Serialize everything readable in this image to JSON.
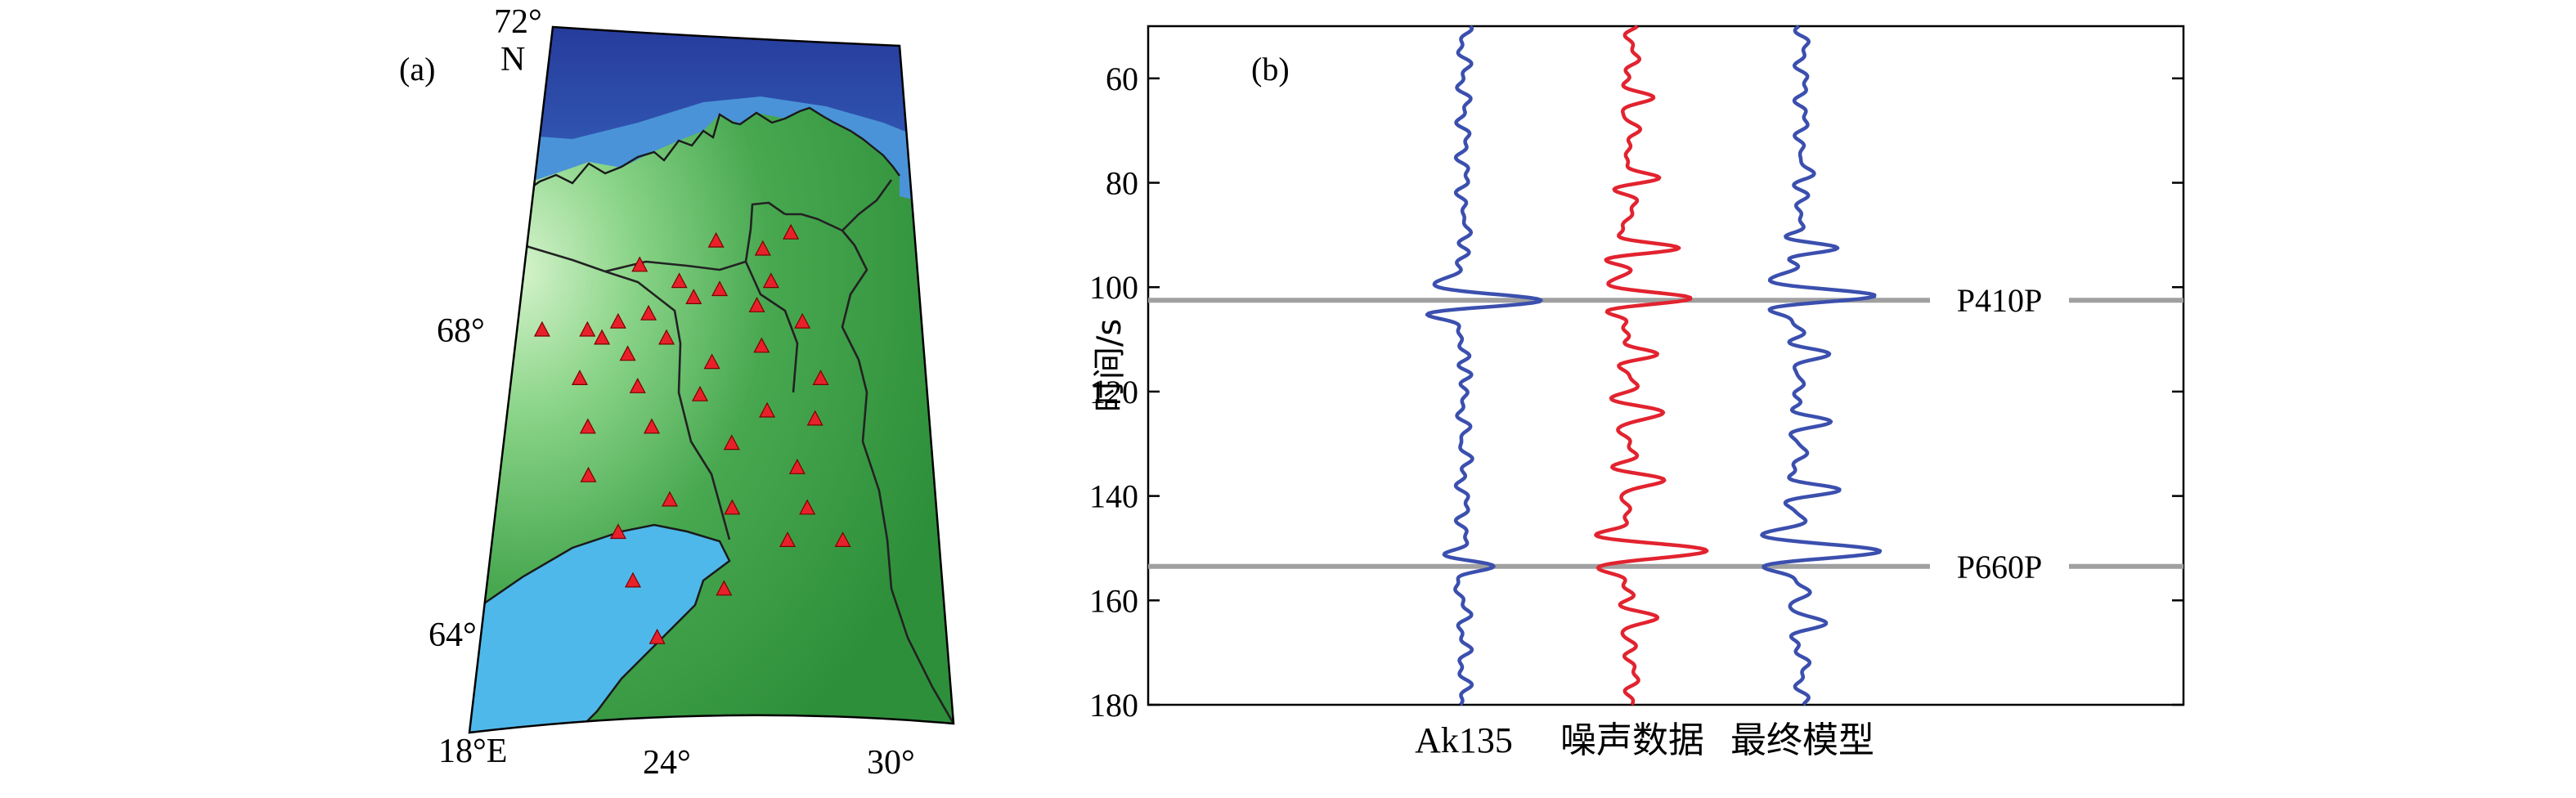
{
  "chart_data": [
    {
      "panel_label": "(a)",
      "type": "map",
      "latitude_labels": [
        "72°",
        "68°",
        "64°"
      ],
      "north_label": "N",
      "longitude_labels": [
        "18°E",
        "24°",
        "30°"
      ],
      "stations": [
        {
          "lon": 20.8,
          "lat": 68.5
        },
        {
          "lon": 24.8,
          "lat": 68.8
        },
        {
          "lon": 26.9,
          "lat": 69.1
        },
        {
          "lon": 28.2,
          "lat": 69.0
        },
        {
          "lon": 29.0,
          "lat": 69.2
        },
        {
          "lon": 25.9,
          "lat": 68.6
        },
        {
          "lon": 27.0,
          "lat": 68.5
        },
        {
          "lon": 28.4,
          "lat": 68.6
        },
        {
          "lon": 22.3,
          "lat": 68.0
        },
        {
          "lon": 23.5,
          "lat": 68.0
        },
        {
          "lon": 24.3,
          "lat": 68.1
        },
        {
          "lon": 25.1,
          "lat": 68.2
        },
        {
          "lon": 26.3,
          "lat": 68.4
        },
        {
          "lon": 28.0,
          "lat": 68.3
        },
        {
          "lon": 29.2,
          "lat": 68.1
        },
        {
          "lon": 23.9,
          "lat": 67.9
        },
        {
          "lon": 24.6,
          "lat": 67.7
        },
        {
          "lon": 25.6,
          "lat": 67.9
        },
        {
          "lon": 26.8,
          "lat": 67.6
        },
        {
          "lon": 28.1,
          "lat": 67.8
        },
        {
          "lon": 29.6,
          "lat": 67.4
        },
        {
          "lon": 23.4,
          "lat": 67.4
        },
        {
          "lon": 24.9,
          "lat": 67.3
        },
        {
          "lon": 26.5,
          "lat": 67.2
        },
        {
          "lon": 28.2,
          "lat": 67.0
        },
        {
          "lon": 29.4,
          "lat": 66.9
        },
        {
          "lon": 23.7,
          "lat": 66.8
        },
        {
          "lon": 25.3,
          "lat": 66.8
        },
        {
          "lon": 27.3,
          "lat": 66.6
        },
        {
          "lon": 28.9,
          "lat": 66.3
        },
        {
          "lon": 23.8,
          "lat": 66.2
        },
        {
          "lon": 25.8,
          "lat": 65.9
        },
        {
          "lon": 27.3,
          "lat": 65.8
        },
        {
          "lon": 29.1,
          "lat": 65.8
        },
        {
          "lon": 24.6,
          "lat": 65.5
        },
        {
          "lon": 28.6,
          "lat": 65.4
        },
        {
          "lon": 29.9,
          "lat": 65.4
        },
        {
          "lon": 25.0,
          "lat": 64.9
        },
        {
          "lon": 27.1,
          "lat": 64.8
        },
        {
          "lon": 25.6,
          "lat": 64.2
        }
      ],
      "colors": {
        "sea_deep": "#2b3f9e",
        "sea_shallow": "#3a74c8",
        "lake": "#4fb8ea",
        "land_high": "#ccefc0",
        "land_low": "#2e8f3a",
        "station": "#e8202a"
      }
    },
    {
      "panel_label": "(b)",
      "type": "line",
      "ylabel": "时间/s",
      "ylim": [
        50,
        180
      ],
      "y_inverted": true,
      "yticks": [
        "60",
        "80",
        "100",
        "120",
        "140",
        "160",
        "180"
      ],
      "phases": [
        {
          "label": "P410P",
          "time": 102.5
        },
        {
          "label": "P660P",
          "time": 153.5
        }
      ],
      "series": [
        {
          "name": "Ak135",
          "color": "#3b4fae",
          "wavelets": [
            {
              "t": 102.5,
              "amp": 1.0,
              "width": 3.5
            },
            {
              "t": 153.5,
              "amp": 0.35,
              "width": 3.0
            },
            {
              "t": 89.0,
              "amp": 0.15,
              "width": 3.2
            },
            {
              "t": 117.0,
              "amp": 0.12,
              "width": 3.2
            },
            {
              "t": 132.0,
              "amp": 0.1,
              "width": 3.2
            }
          ]
        },
        {
          "name": "噪声数据",
          "color": "#e2232f",
          "wavelets": [
            {
              "t": 102.0,
              "amp": 0.75,
              "width": 3.3
            },
            {
              "t": 150.5,
              "amp": 1.0,
              "width": 3.8
            },
            {
              "t": 92.5,
              "amp": 0.55,
              "width": 3.0
            },
            {
              "t": 79.0,
              "amp": 0.35,
              "width": 3.0
            },
            {
              "t": 64.0,
              "amp": 0.22,
              "width": 3.0
            },
            {
              "t": 124.0,
              "amp": 0.4,
              "width": 3.2
            },
            {
              "t": 137.0,
              "amp": 0.45,
              "width": 3.2
            },
            {
              "t": 163.5,
              "amp": 0.38,
              "width": 3.2
            },
            {
              "t": 113.0,
              "amp": 0.25,
              "width": 3.0
            }
          ]
        },
        {
          "name": "最终模型",
          "color": "#3b4fae",
          "wavelets": [
            {
              "t": 101.5,
              "amp": 0.85,
              "width": 3.4
            },
            {
              "t": 150.5,
              "amp": 0.95,
              "width": 3.6
            },
            {
              "t": 92.5,
              "amp": 0.45,
              "width": 3.0
            },
            {
              "t": 78.0,
              "amp": 0.22,
              "width": 3.0
            },
            {
              "t": 113.0,
              "amp": 0.38,
              "width": 3.2
            },
            {
              "t": 126.0,
              "amp": 0.35,
              "width": 3.2
            },
            {
              "t": 139.0,
              "amp": 0.4,
              "width": 3.2
            },
            {
              "t": 164.0,
              "amp": 0.28,
              "width": 3.2
            }
          ]
        }
      ]
    }
  ]
}
